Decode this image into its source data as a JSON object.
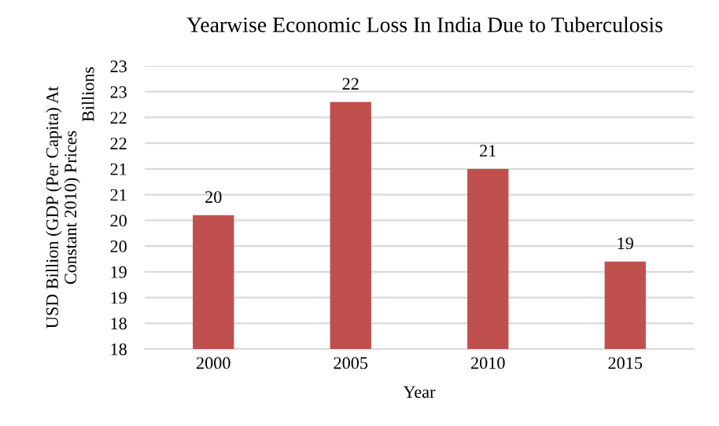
{
  "chart_data": {
    "type": "bar",
    "title": "Yearwise Economic Loss In India Due to Tuberculosis",
    "xlabel": "Year",
    "ylabel": "USD Billion (GDP (Per Capita) At\nConstant 2010) Prices",
    "annotations": [
      "Billions"
    ],
    "categories": [
      "2000",
      "2005",
      "2010",
      "2015"
    ],
    "values": [
      20.1,
      22.3,
      21.0,
      19.2
    ],
    "value_labels": [
      "20",
      "22",
      "21",
      "19"
    ],
    "color": "#c0504d",
    "ylim": [
      17.5,
      23
    ],
    "yticks": [
      {
        "value": 17.5,
        "label": "18"
      },
      18,
      {
        "value": 18.5,
        "label": "19"
      },
      19,
      {
        "value": 19.5,
        "label": "20"
      },
      20,
      {
        "value": 20.5,
        "label": "21"
      },
      21,
      {
        "value": 21.5,
        "label": "22"
      },
      22,
      {
        "value": 22.5,
        "label": "23"
      },
      23
    ],
    "grid": "y"
  }
}
